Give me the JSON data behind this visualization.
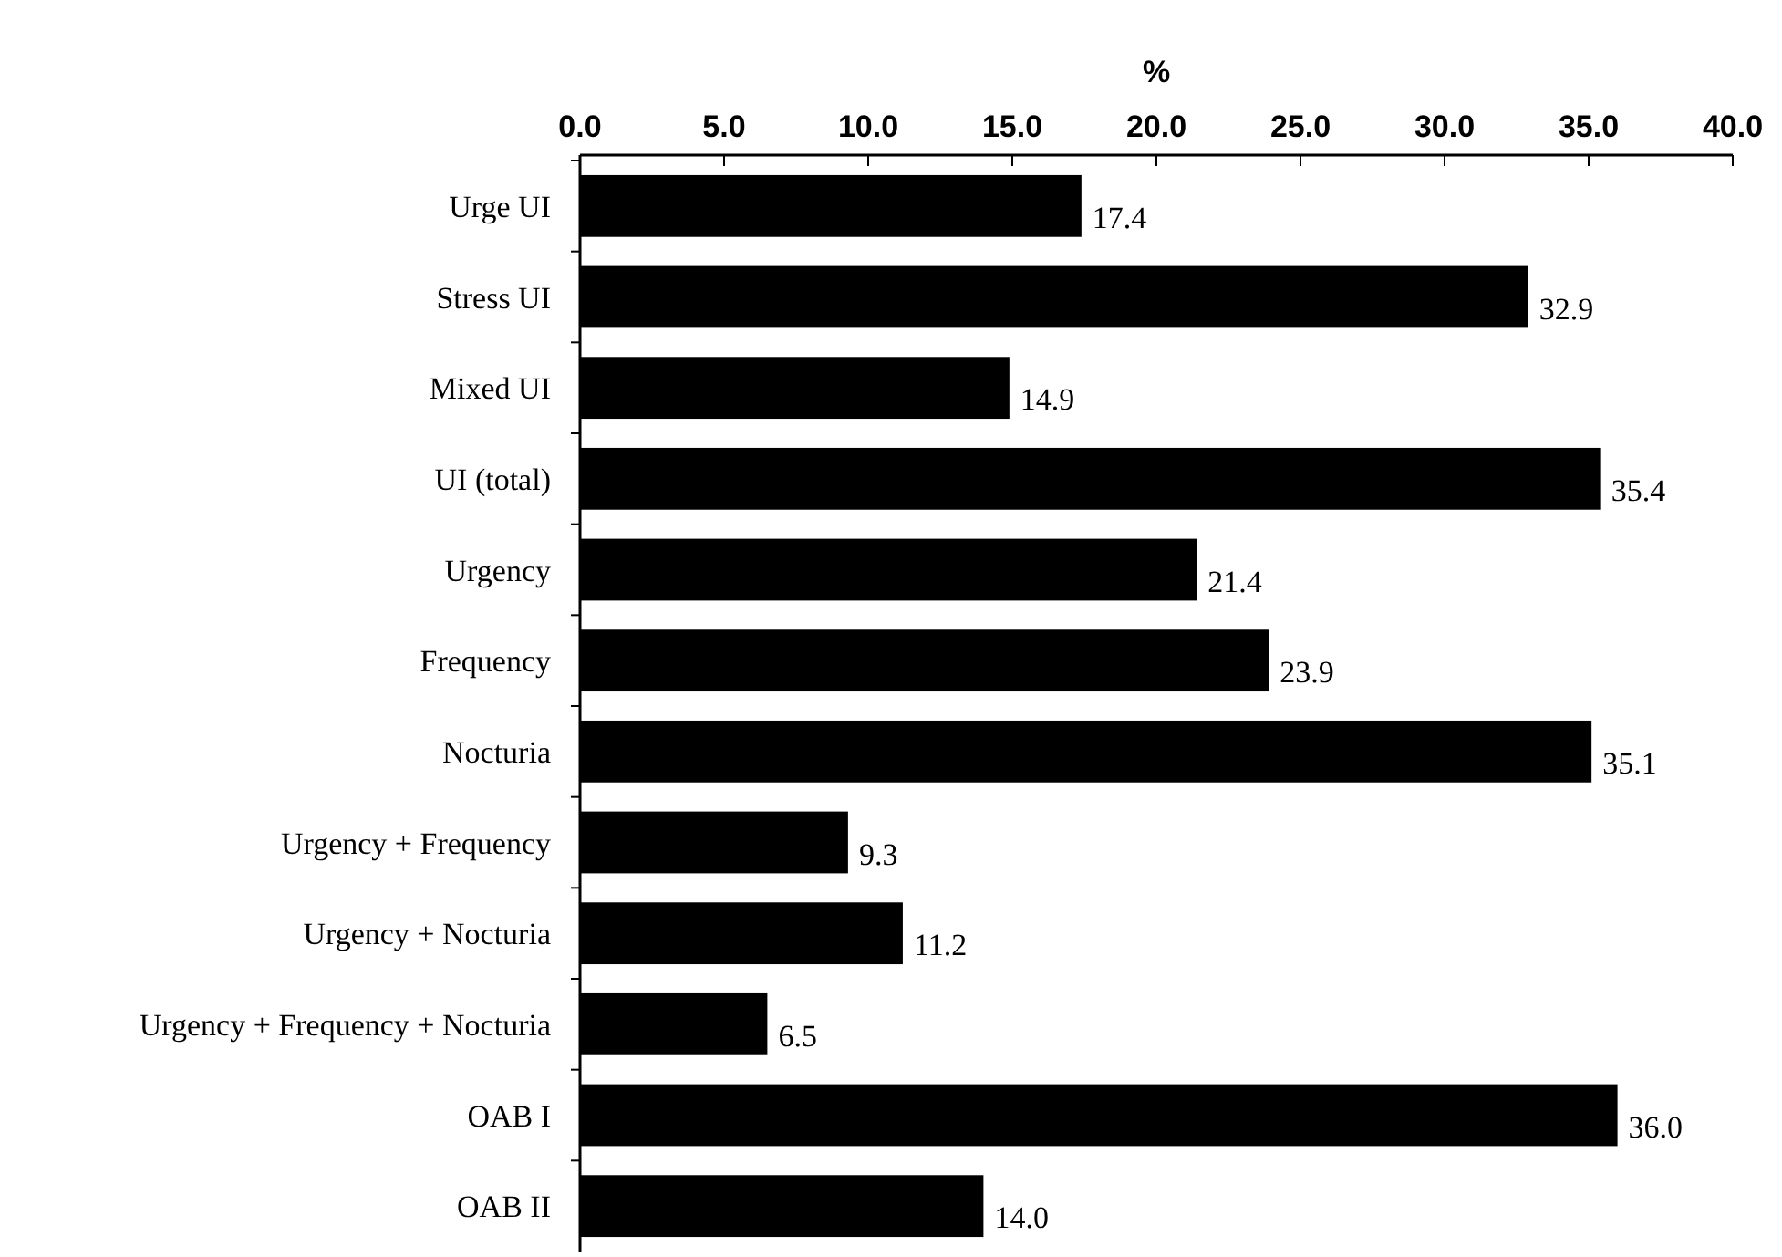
{
  "chart_data": {
    "type": "bar",
    "orientation": "horizontal",
    "xlabel": "%",
    "categories": [
      "Urge UI",
      "Stress UI",
      "Mixed UI",
      "UI (total)",
      "Urgency",
      "Frequency",
      "Nocturia",
      "Urgency + Frequency",
      "Urgency + Nocturia",
      "Urgency + Frequency + Nocturia",
      "OAB I",
      "OAB II"
    ],
    "values": [
      17.4,
      32.9,
      14.9,
      35.4,
      21.4,
      23.9,
      35.1,
      9.3,
      11.2,
      6.5,
      36.0,
      14.0
    ],
    "value_labels": [
      "17.4",
      "32.9",
      "14.9",
      "35.4",
      "21.4",
      "23.9",
      "35.1",
      "9.3",
      "11.2",
      "6.5",
      "36.0",
      "14.0"
    ],
    "color": "#000000",
    "xlim": [
      0,
      40
    ],
    "xticks": [
      {
        "value": 0,
        "label": "0.0"
      },
      {
        "value": 5,
        "label": "5.0"
      },
      {
        "value": 10,
        "label": "10.0"
      },
      {
        "value": 15,
        "label": "15.0"
      },
      {
        "value": 20,
        "label": "20.0"
      },
      {
        "value": 25,
        "label": "25.0"
      },
      {
        "value": 30,
        "label": "30.0"
      },
      {
        "value": 35,
        "label": "35.0"
      },
      {
        "value": 40,
        "label": "40.0"
      }
    ],
    "grid": false
  }
}
